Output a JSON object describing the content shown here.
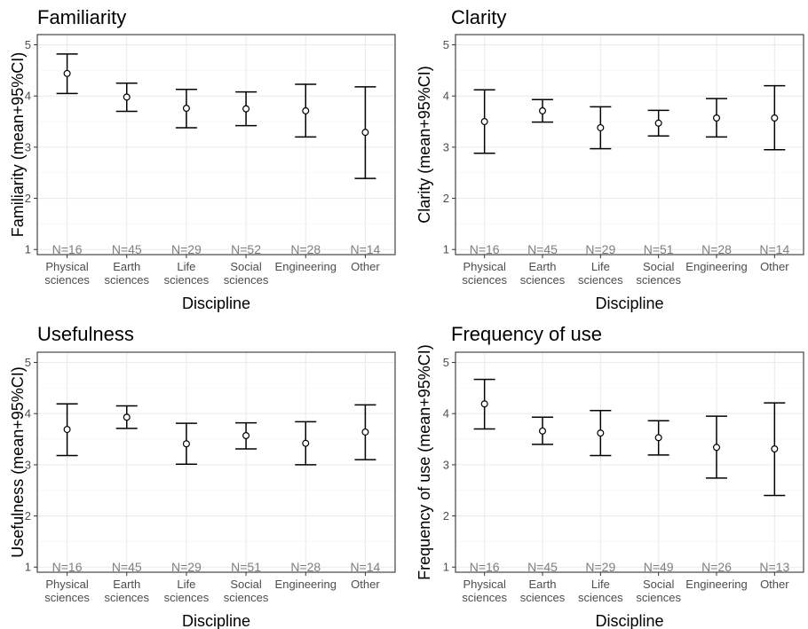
{
  "colors": {
    "grid_major": "#ebebeb",
    "grid_minor": "#f5f5f5",
    "panel_border": "#333333",
    "tick_text": "#4d4d4d",
    "n_text": "#7f7f7f",
    "mark": "#000000"
  },
  "chart_data": [
    {
      "type": "errorbar",
      "title": "Familiarity",
      "xlabel": "Discipline",
      "ylabel": "Familiarity (mean+95%CI)",
      "ylim": [
        0.9,
        5.2
      ],
      "yticks": [
        1,
        2,
        3,
        4,
        5
      ],
      "grid": true,
      "categories": [
        [
          "Physical",
          "sciences"
        ],
        [
          "Earth",
          "sciences"
        ],
        [
          "Life",
          "sciences"
        ],
        [
          "Social",
          "sciences"
        ],
        [
          "Engineering"
        ],
        [
          "Other"
        ]
      ],
      "means": [
        4.44,
        3.98,
        3.76,
        3.75,
        3.71,
        3.29
      ],
      "lower": [
        4.05,
        3.7,
        3.38,
        3.42,
        3.2,
        2.39
      ],
      "upper": [
        4.82,
        4.25,
        4.13,
        4.08,
        4.23,
        4.18
      ],
      "n_labels": [
        "N=16",
        "N=45",
        "N=29",
        "N=52",
        "N=28",
        "N=14"
      ]
    },
    {
      "type": "errorbar",
      "title": "Clarity",
      "xlabel": "Discipline",
      "ylabel": "Clarity (mean+95%CI)",
      "ylim": [
        0.9,
        5.2
      ],
      "yticks": [
        1,
        2,
        3,
        4,
        5
      ],
      "grid": true,
      "categories": [
        [
          "Physical",
          "sciences"
        ],
        [
          "Earth",
          "sciences"
        ],
        [
          "Life",
          "sciences"
        ],
        [
          "Social",
          "sciences"
        ],
        [
          "Engineering"
        ],
        [
          "Other"
        ]
      ],
      "means": [
        3.5,
        3.71,
        3.38,
        3.47,
        3.57,
        3.57
      ],
      "lower": [
        2.88,
        3.49,
        2.97,
        3.22,
        3.2,
        2.95
      ],
      "upper": [
        4.12,
        3.93,
        3.79,
        3.72,
        3.95,
        4.2
      ],
      "n_labels": [
        "N=16",
        "N=45",
        "N=29",
        "N=51",
        "N=28",
        "N=14"
      ]
    },
    {
      "type": "errorbar",
      "title": "Usefulness",
      "xlabel": "Discipline",
      "ylabel": "Usefulness (mean+95%CI)",
      "ylim": [
        0.9,
        5.2
      ],
      "yticks": [
        1,
        2,
        3,
        4,
        5
      ],
      "grid": true,
      "categories": [
        [
          "Physical",
          "sciences"
        ],
        [
          "Earth",
          "sciences"
        ],
        [
          "Life",
          "sciences"
        ],
        [
          "Social",
          "sciences"
        ],
        [
          "Engineering"
        ],
        [
          "Other"
        ]
      ],
      "means": [
        3.69,
        3.93,
        3.41,
        3.57,
        3.42,
        3.64
      ],
      "lower": [
        3.18,
        3.71,
        3.01,
        3.31,
        3.0,
        3.1
      ],
      "upper": [
        4.19,
        4.15,
        3.81,
        3.82,
        3.84,
        4.17
      ],
      "n_labels": [
        "N=16",
        "N=45",
        "N=29",
        "N=51",
        "N=28",
        "N=14"
      ]
    },
    {
      "type": "errorbar",
      "title": "Frequency of use",
      "xlabel": "Discipline",
      "ylabel": "Frequency of use (mean+95%CI)",
      "ylim": [
        0.9,
        5.2
      ],
      "yticks": [
        1,
        2,
        3,
        4,
        5
      ],
      "grid": true,
      "categories": [
        [
          "Physical",
          "sciences"
        ],
        [
          "Earth",
          "sciences"
        ],
        [
          "Life",
          "sciences"
        ],
        [
          "Social",
          "sciences"
        ],
        [
          "Engineering"
        ],
        [
          "Other"
        ]
      ],
      "means": [
        4.19,
        3.66,
        3.62,
        3.53,
        3.34,
        3.31
      ],
      "lower": [
        3.7,
        3.4,
        3.18,
        3.19,
        2.74,
        2.4
      ],
      "upper": [
        4.67,
        3.93,
        4.06,
        3.86,
        3.95,
        4.21
      ],
      "n_labels": [
        "N=16",
        "N=45",
        "N=29",
        "N=49",
        "N=26",
        "N=13"
      ]
    }
  ]
}
